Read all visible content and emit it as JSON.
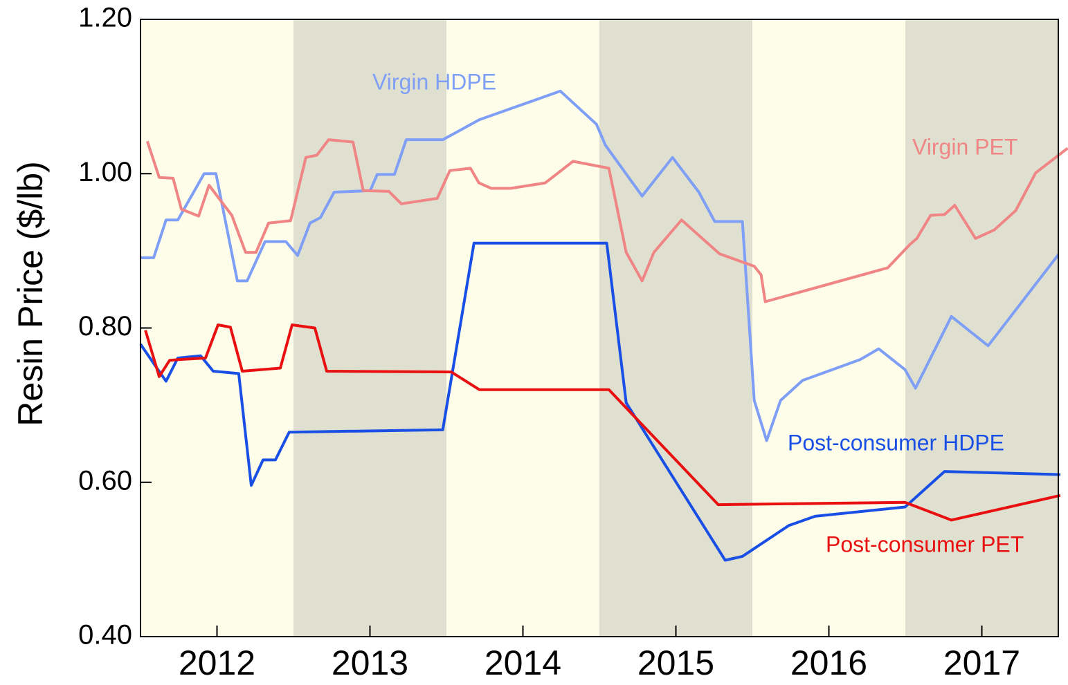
{
  "chart_data": {
    "type": "line",
    "ylabel": "Resin Price ($/lb)",
    "xlim": [
      2012,
      2018
    ],
    "xticks": [
      {
        "value": 2012.5,
        "label": "2012"
      },
      {
        "value": 2013.5,
        "label": "2013"
      },
      {
        "value": 2014.5,
        "label": "2014"
      },
      {
        "value": 2015.5,
        "label": "2015"
      },
      {
        "value": 2016.5,
        "label": "2016"
      },
      {
        "value": 2017.5,
        "label": "2017"
      }
    ],
    "ylim": [
      0.4,
      1.2
    ],
    "yticks": [
      {
        "value": 0.4,
        "label": "0.40"
      },
      {
        "value": 0.6,
        "label": "0.60"
      },
      {
        "value": 0.8,
        "label": "0.80"
      },
      {
        "value": 1.0,
        "label": "1.00"
      },
      {
        "value": 1.2,
        "label": "1.20"
      }
    ],
    "series": [
      {
        "name": "Virgin HDPE",
        "color": "#7f9ef5",
        "x": [
          2012.0,
          2012.086,
          2012.167,
          2012.244,
          2012.416,
          2012.493,
          2012.633,
          2012.697,
          2012.814,
          2012.95,
          2013.027,
          2013.108,
          2013.176,
          2013.266,
          2013.502,
          2013.547,
          2013.66,
          2013.737,
          2013.976,
          2014.216,
          2014.745,
          2014.981,
          2015.039,
          2015.279,
          2015.478,
          2015.65,
          2015.754,
          2015.935,
          2016.012,
          2016.093,
          2016.184,
          2016.328,
          2016.704,
          2016.826,
          2016.998,
          2017.066,
          2017.301,
          2017.541,
          2018.0
        ],
        "values": [
          0.891,
          0.891,
          0.94,
          0.94,
          1.0,
          1.0,
          0.861,
          0.861,
          0.912,
          0.912,
          0.894,
          0.936,
          0.943,
          0.976,
          0.978,
          0.999,
          0.999,
          1.044,
          1.044,
          1.07,
          1.107,
          1.064,
          1.037,
          0.971,
          1.021,
          0.976,
          0.938,
          0.938,
          0.706,
          0.654,
          0.706,
          0.732,
          0.759,
          0.773,
          0.746,
          0.722,
          0.815,
          0.777,
          0.895
        ]
      },
      {
        "name": "Virgin PET",
        "color": "#f08585",
        "x": [
          2012.045,
          2012.122,
          2012.213,
          2012.267,
          2012.38,
          2012.448,
          2012.597,
          2012.687,
          2012.755,
          2012.837,
          2012.981,
          2013.081,
          2013.153,
          2013.23,
          2013.389,
          2013.456,
          2013.624,
          2013.705,
          2013.94,
          2014.022,
          2014.157,
          2014.212,
          2014.293,
          2014.42,
          2014.646,
          2014.827,
          2015.062,
          2015.175,
          2015.279,
          2015.356,
          2015.537,
          2015.786,
          2016.012,
          2016.057,
          2016.084,
          2016.885,
          2017.029,
          2017.075,
          2017.165,
          2017.256,
          2017.323,
          2017.459,
          2017.581,
          2017.721,
          2017.852,
          2018.061
        ],
        "values": [
          1.042,
          0.995,
          0.994,
          0.954,
          0.945,
          0.985,
          0.946,
          0.898,
          0.898,
          0.936,
          0.939,
          1.021,
          1.024,
          1.044,
          1.041,
          0.978,
          0.977,
          0.961,
          0.968,
          1.004,
          1.007,
          0.988,
          0.981,
          0.981,
          0.988,
          1.016,
          1.007,
          0.898,
          0.861,
          0.898,
          0.94,
          0.896,
          0.88,
          0.869,
          0.834,
          0.878,
          0.908,
          0.916,
          0.946,
          0.947,
          0.959,
          0.916,
          0.927,
          0.952,
          1.001,
          1.033
        ]
      },
      {
        "name": "Post-consumer HDPE",
        "color": "#1a4fe6",
        "x": [
          2012.0,
          2012.1,
          2012.167,
          2012.244,
          2012.393,
          2012.475,
          2012.642,
          2012.724,
          2012.801,
          2012.882,
          2012.972,
          2013.976,
          2014.18,
          2015.048,
          2015.175,
          2015.822,
          2015.935,
          2016.238,
          2016.41,
          2016.998,
          2017.256,
          2018.013
        ],
        "values": [
          0.779,
          0.75,
          0.731,
          0.761,
          0.764,
          0.744,
          0.741,
          0.596,
          0.629,
          0.629,
          0.665,
          0.668,
          0.91,
          0.91,
          0.703,
          0.499,
          0.504,
          0.544,
          0.556,
          0.568,
          0.614,
          0.61
        ]
      },
      {
        "name": "Post-consumer PET",
        "color": "#e81010",
        "x": [
          2012.032,
          2012.122,
          2012.19,
          2012.244,
          2012.425,
          2012.507,
          2012.588,
          2012.665,
          2012.914,
          2012.991,
          2013.14,
          2013.217,
          2014.031,
          2014.216,
          2015.062,
          2015.777,
          2016.998,
          2017.301,
          2018.013
        ],
        "values": [
          0.797,
          0.737,
          0.758,
          0.759,
          0.761,
          0.804,
          0.801,
          0.744,
          0.748,
          0.804,
          0.8,
          0.744,
          0.743,
          0.72,
          0.72,
          0.571,
          0.574,
          0.551,
          0.583
        ]
      }
    ]
  }
}
